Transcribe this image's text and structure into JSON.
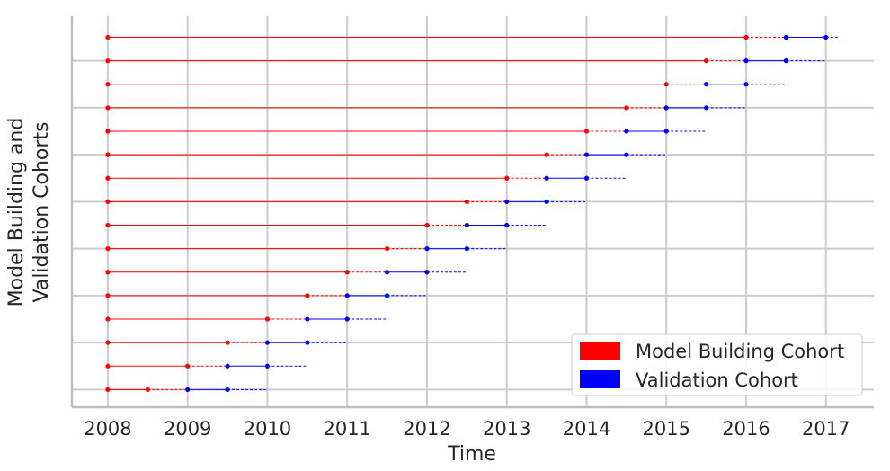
{
  "chart_data": {
    "type": "line",
    "title": "",
    "xlabel": "Time",
    "ylabel_lines": [
      "Model Building and",
      "Validation Cohorts"
    ],
    "xlim": [
      2007.55,
      2017.6
    ],
    "ylim": [
      -0.75,
      15.9
    ],
    "x_ticks": [
      "2008",
      "2009",
      "2010",
      "2011",
      "2012",
      "2013",
      "2014",
      "2015",
      "2016",
      "2017"
    ],
    "y_gridlines": [
      0,
      2,
      4,
      6,
      8,
      10,
      12,
      14
    ],
    "grid": true,
    "legend_position": "bottom-right",
    "colors": {
      "model": "#ff0000",
      "validation": "#0000ff",
      "grid": "#cccccc",
      "axis": "#bfbfbf"
    },
    "legend": [
      {
        "label": "Model Building Cohort",
        "color": "#ff0000"
      },
      {
        "label": "Validation Cohort",
        "color": "#0000ff"
      }
    ],
    "cohorts": [
      {
        "start": 2008,
        "split": 2008.5,
        "val_start": 2009.0,
        "val_mid": 2009.5,
        "val_end": 2010.0
      },
      {
        "start": 2008,
        "split": 2009.0,
        "val_start": 2009.5,
        "val_mid": 2010.0,
        "val_end": 2010.5
      },
      {
        "start": 2008,
        "split": 2009.5,
        "val_start": 2010.0,
        "val_mid": 2010.5,
        "val_end": 2011.0
      },
      {
        "start": 2008,
        "split": 2010.0,
        "val_start": 2010.5,
        "val_mid": 2011.0,
        "val_end": 2011.5
      },
      {
        "start": 2008,
        "split": 2010.5,
        "val_start": 2011.0,
        "val_mid": 2011.5,
        "val_end": 2012.0
      },
      {
        "start": 2008,
        "split": 2011.0,
        "val_start": 2011.5,
        "val_mid": 2012.0,
        "val_end": 2012.5
      },
      {
        "start": 2008,
        "split": 2011.5,
        "val_start": 2012.0,
        "val_mid": 2012.5,
        "val_end": 2013.0
      },
      {
        "start": 2008,
        "split": 2012.0,
        "val_start": 2012.5,
        "val_mid": 2013.0,
        "val_end": 2013.5
      },
      {
        "start": 2008,
        "split": 2012.5,
        "val_start": 2013.0,
        "val_mid": 2013.5,
        "val_end": 2014.0
      },
      {
        "start": 2008,
        "split": 2013.0,
        "val_start": 2013.5,
        "val_mid": 2014.0,
        "val_end": 2014.5
      },
      {
        "start": 2008,
        "split": 2013.5,
        "val_start": 2014.0,
        "val_mid": 2014.5,
        "val_end": 2015.0
      },
      {
        "start": 2008,
        "split": 2014.0,
        "val_start": 2014.5,
        "val_mid": 2015.0,
        "val_end": 2015.5
      },
      {
        "start": 2008,
        "split": 2014.5,
        "val_start": 2015.0,
        "val_mid": 2015.5,
        "val_end": 2016.0
      },
      {
        "start": 2008,
        "split": 2015.0,
        "val_start": 2015.5,
        "val_mid": 2016.0,
        "val_end": 2016.5
      },
      {
        "start": 2008,
        "split": 2015.5,
        "val_start": 2016.0,
        "val_mid": 2016.5,
        "val_end": 2017.0
      },
      {
        "start": 2008,
        "split": 2016.0,
        "val_start": 2016.5,
        "val_mid": 2017.0,
        "val_end": 2017.15
      }
    ]
  }
}
